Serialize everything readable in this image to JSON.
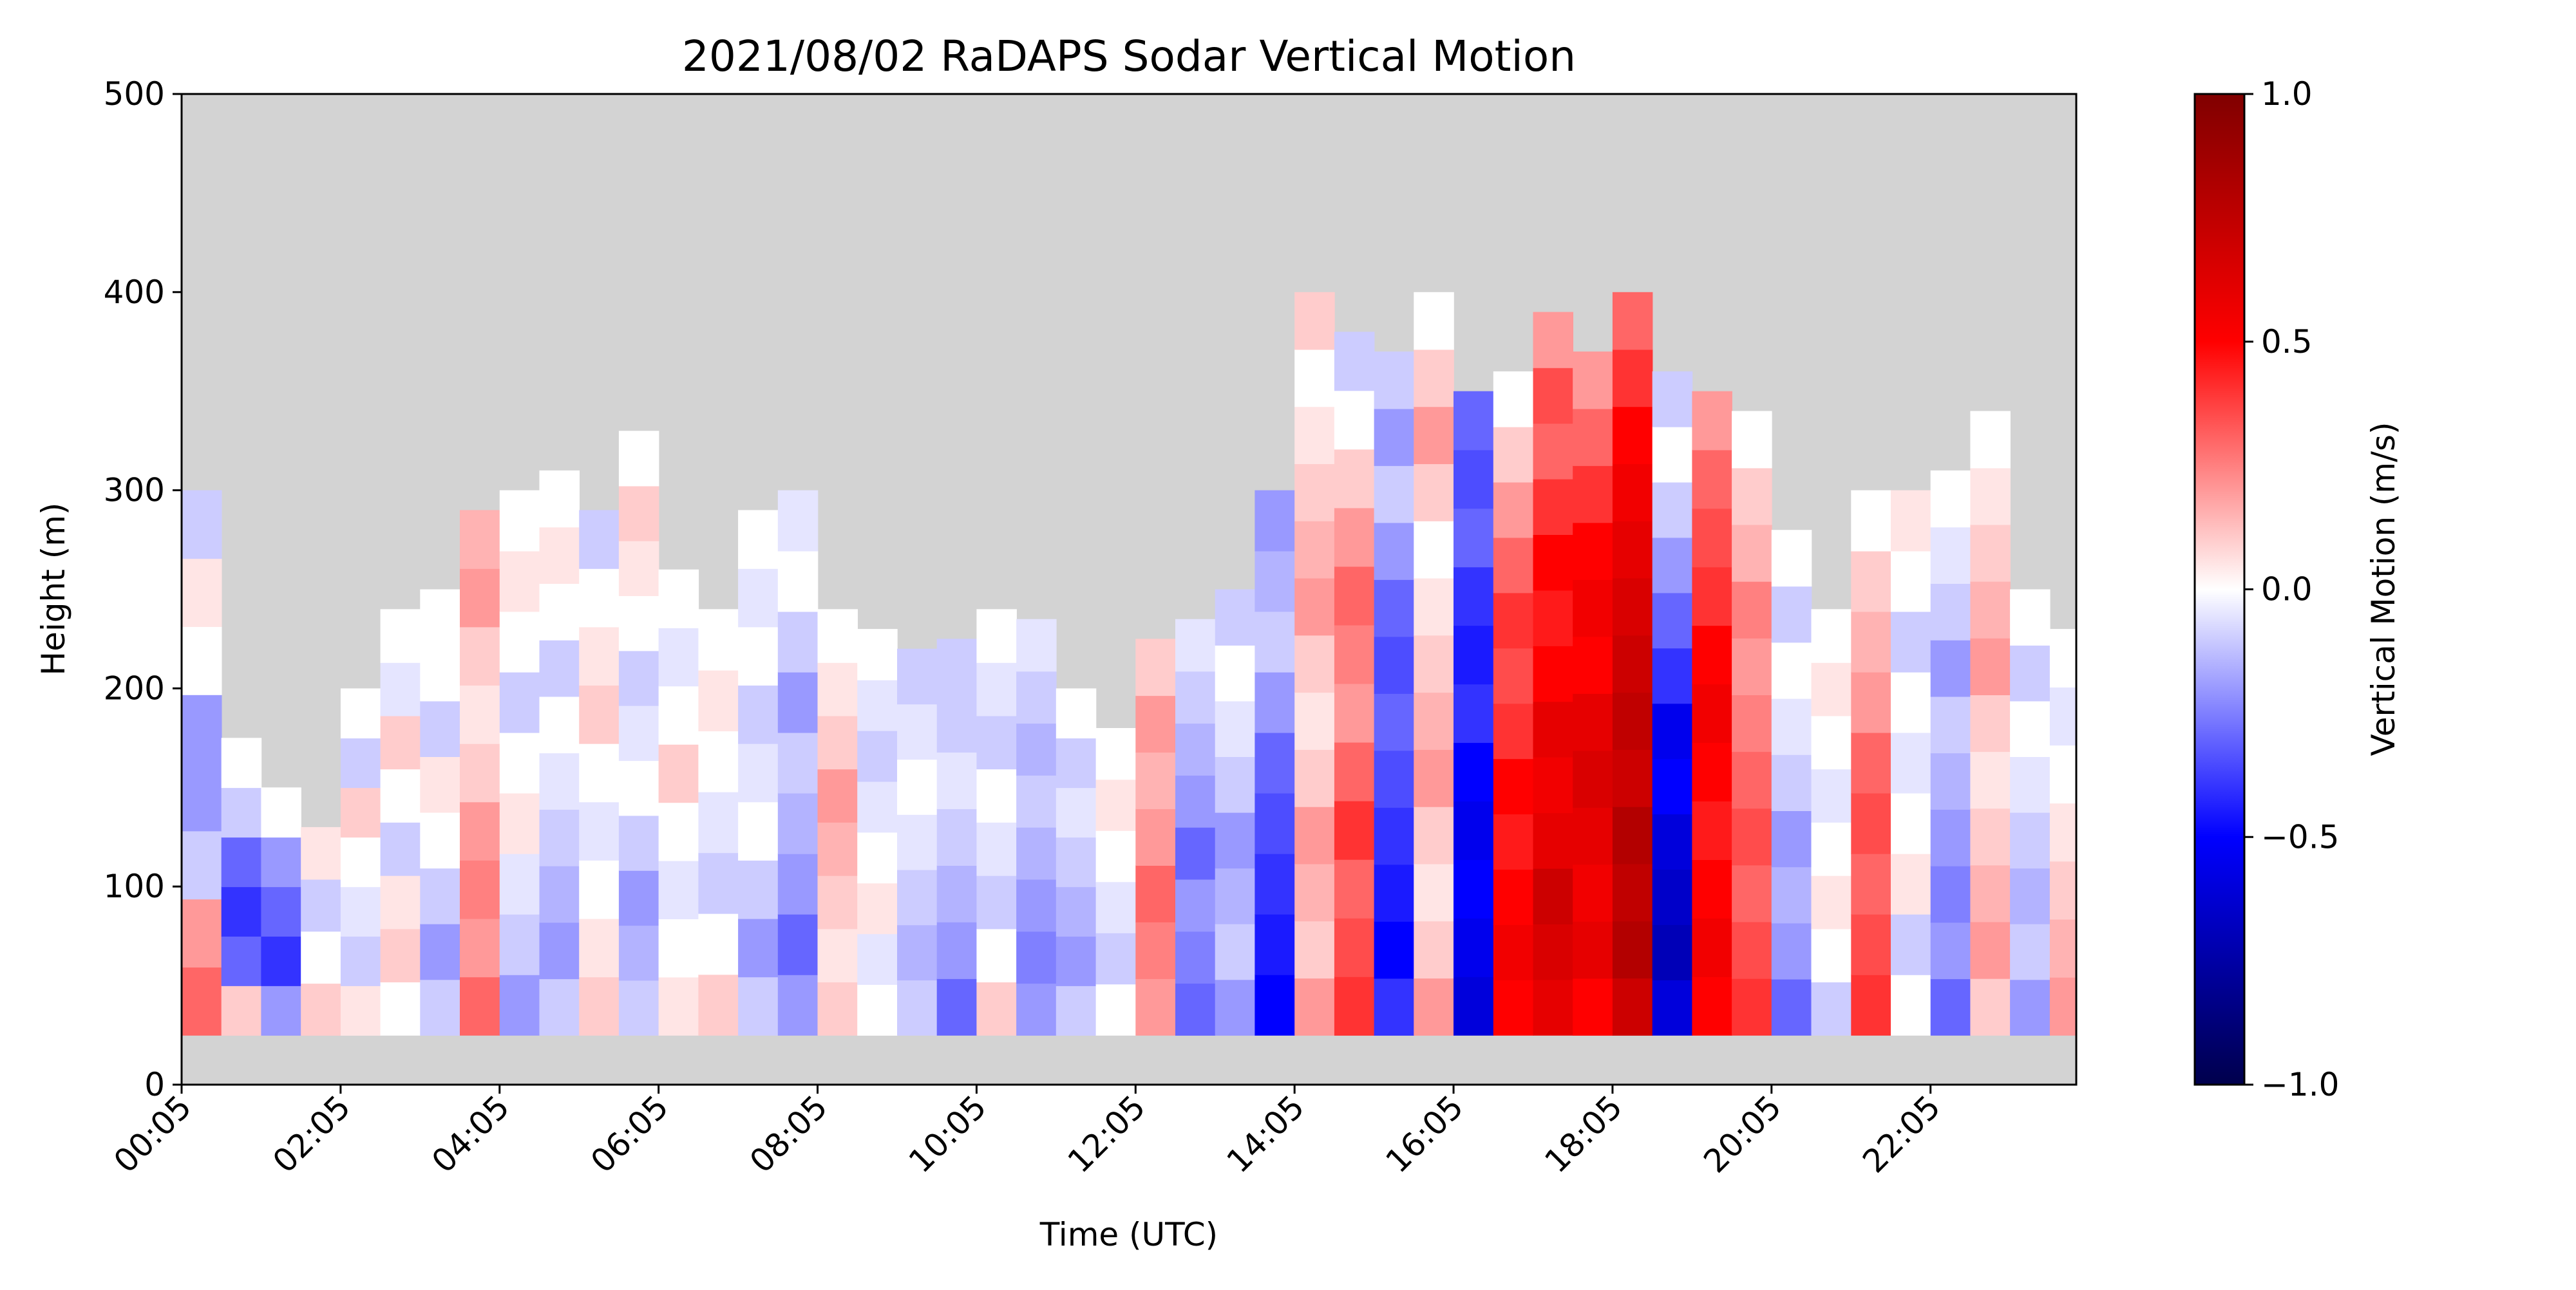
{
  "chart_data": {
    "type": "heatmap",
    "title": "2021/08/02 RaDAPS Sodar Vertical Motion",
    "xlabel": "Time (UTC)",
    "ylabel": "Height (m)",
    "colorbar_label": "Vertical Motion (m/s)",
    "x_ticks": [
      "00:05",
      "02:05",
      "04:05",
      "06:05",
      "08:05",
      "10:05",
      "12:05",
      "14:05",
      "16:05",
      "18:05",
      "20:05",
      "22:05"
    ],
    "x_range": [
      "00:05",
      "23:55"
    ],
    "ylim": [
      0,
      500
    ],
    "y_ticks": [
      0,
      100,
      200,
      300,
      400,
      500
    ],
    "clim": [
      -1.0,
      1.0
    ],
    "colorbar_ticks": [
      1.0,
      0.5,
      0.0,
      -0.5,
      -1.0
    ],
    "colorbar_tick_labels": [
      "1.0",
      "0.5",
      "0.0",
      "−0.5",
      "−1.0"
    ],
    "colormap": "seismic",
    "colormap_stops": [
      "#00004c",
      "#0000ff",
      "#ffffff",
      "#ff0000",
      "#800000"
    ],
    "missing_color": "#d3d3d3",
    "data_bottom_height": 25,
    "grid": false,
    "columns": [
      {
        "time": "00:05",
        "top": 300,
        "v": [
          0.3,
          0.2,
          -0.1,
          -0.2,
          -0.2,
          0.0,
          0.05,
          -0.1
        ]
      },
      {
        "time": "00:35",
        "top": 175,
        "v": [
          0.1,
          -0.3,
          -0.4,
          -0.3,
          -0.1,
          0.0
        ]
      },
      {
        "time": "01:05",
        "top": 150,
        "v": [
          -0.2,
          -0.4,
          -0.3,
          -0.2,
          0.0
        ]
      },
      {
        "time": "01:35",
        "top": 130,
        "v": [
          0.1,
          0.0,
          -0.1,
          0.05
        ]
      },
      {
        "time": "02:05",
        "top": 200,
        "v": [
          0.05,
          -0.1,
          -0.05,
          0.0,
          0.1,
          -0.1,
          0.0
        ]
      },
      {
        "time": "02:35",
        "top": 240,
        "v": [
          0.0,
          0.1,
          0.05,
          -0.1,
          0.0,
          0.1,
          -0.05,
          0.0
        ]
      },
      {
        "time": "03:05",
        "top": 250,
        "v": [
          -0.1,
          -0.2,
          -0.1,
          0.0,
          0.05,
          -0.1,
          0.0,
          0.0
        ]
      },
      {
        "time": "03:35",
        "top": 290,
        "v": [
          0.3,
          0.2,
          0.25,
          0.2,
          0.1,
          0.05,
          0.1,
          0.2,
          0.15
        ]
      },
      {
        "time": "04:05",
        "top": 300,
        "v": [
          -0.2,
          -0.1,
          -0.05,
          0.05,
          0.0,
          -0.1,
          0.0,
          0.05,
          0.0
        ]
      },
      {
        "time": "04:35",
        "top": 310,
        "v": [
          -0.1,
          -0.2,
          -0.15,
          -0.1,
          -0.05,
          0.0,
          -0.1,
          0.0,
          0.05,
          0.0
        ]
      },
      {
        "time": "05:05",
        "top": 290,
        "v": [
          0.1,
          0.05,
          0.0,
          -0.05,
          0.0,
          0.1,
          0.05,
          0.0,
          -0.1
        ]
      },
      {
        "time": "05:35",
        "top": 330,
        "v": [
          -0.1,
          -0.15,
          -0.2,
          -0.1,
          0.0,
          -0.05,
          -0.1,
          0.0,
          0.05,
          0.1,
          0.0
        ]
      },
      {
        "time": "06:05",
        "top": 260,
        "v": [
          0.05,
          0.0,
          -0.05,
          0.0,
          0.1,
          0.0,
          -0.05,
          0.0
        ]
      },
      {
        "time": "06:35",
        "top": 240,
        "v": [
          0.1,
          0.0,
          -0.1,
          -0.05,
          0.0,
          0.05,
          0.0
        ]
      },
      {
        "time": "07:05",
        "top": 290,
        "v": [
          -0.1,
          -0.2,
          -0.1,
          0.0,
          -0.05,
          -0.1,
          0.0,
          -0.05,
          0.0
        ]
      },
      {
        "time": "07:35",
        "top": 300,
        "v": [
          -0.2,
          -0.3,
          -0.2,
          -0.15,
          -0.1,
          -0.2,
          -0.1,
          0.0,
          -0.05
        ]
      },
      {
        "time": "08:05",
        "top": 240,
        "v": [
          0.1,
          0.05,
          0.1,
          0.15,
          0.2,
          0.1,
          0.05,
          0.0
        ]
      },
      {
        "time": "08:35",
        "top": 230,
        "v": [
          0.0,
          -0.05,
          0.05,
          0.0,
          -0.05,
          -0.1,
          -0.05,
          0.0
        ]
      },
      {
        "time": "09:05",
        "top": 220,
        "v": [
          -0.1,
          -0.15,
          -0.1,
          -0.05,
          0.0,
          -0.05,
          -0.1
        ]
      },
      {
        "time": "09:35",
        "top": 225,
        "v": [
          -0.3,
          -0.2,
          -0.15,
          -0.1,
          -0.05,
          -0.1,
          -0.1
        ]
      },
      {
        "time": "10:05",
        "top": 240,
        "v": [
          0.1,
          0.0,
          -0.1,
          -0.05,
          0.0,
          -0.1,
          -0.05,
          0.0
        ]
      },
      {
        "time": "10:35",
        "top": 235,
        "v": [
          -0.2,
          -0.25,
          -0.2,
          -0.15,
          -0.1,
          -0.15,
          -0.1,
          -0.05
        ]
      },
      {
        "time": "11:05",
        "top": 200,
        "v": [
          -0.1,
          -0.2,
          -0.15,
          -0.1,
          -0.05,
          -0.1,
          0.0
        ]
      },
      {
        "time": "11:35",
        "top": 180,
        "v": [
          0.0,
          -0.1,
          -0.05,
          0.0,
          0.05,
          0.0
        ]
      },
      {
        "time": "12:05",
        "top": 225,
        "v": [
          0.2,
          0.25,
          0.3,
          0.2,
          0.15,
          0.2,
          0.1
        ]
      },
      {
        "time": "12:35",
        "top": 235,
        "v": [
          -0.3,
          -0.25,
          -0.2,
          -0.3,
          -0.2,
          -0.15,
          -0.1,
          -0.05
        ]
      },
      {
        "time": "13:05",
        "top": 250,
        "v": [
          -0.2,
          -0.1,
          -0.15,
          -0.2,
          -0.1,
          -0.05,
          0.0,
          -0.1
        ]
      },
      {
        "time": "13:35",
        "top": 300,
        "v": [
          -0.5,
          -0.45,
          -0.4,
          -0.35,
          -0.3,
          -0.2,
          -0.1,
          -0.15,
          -0.2
        ]
      },
      {
        "time": "14:05",
        "top": 400,
        "v": [
          0.2,
          0.1,
          0.15,
          0.2,
          0.1,
          0.05,
          0.1,
          0.2,
          0.15,
          0.1,
          0.05,
          0.0,
          0.1
        ]
      },
      {
        "time": "14:35",
        "top": 380,
        "v": [
          0.4,
          0.35,
          0.3,
          0.4,
          0.3,
          0.2,
          0.25,
          0.3,
          0.2,
          0.1,
          0.0,
          -0.1
        ]
      },
      {
        "time": "15:05",
        "top": 370,
        "v": [
          -0.4,
          -0.5,
          -0.45,
          -0.4,
          -0.35,
          -0.3,
          -0.35,
          -0.3,
          -0.2,
          -0.1,
          -0.2,
          -0.1
        ]
      },
      {
        "time": "15:35",
        "top": 400,
        "v": [
          0.2,
          0.1,
          0.05,
          0.1,
          0.2,
          0.15,
          0.1,
          0.05,
          0.0,
          0.1,
          0.2,
          0.1,
          0.0
        ]
      },
      {
        "time": "16:05",
        "top": 350,
        "v": [
          -0.6,
          -0.55,
          -0.5,
          -0.55,
          -0.5,
          -0.4,
          -0.45,
          -0.4,
          -0.3,
          -0.35,
          -0.3
        ]
      },
      {
        "time": "16:35",
        "top": 360,
        "v": [
          0.5,
          0.55,
          0.5,
          0.45,
          0.5,
          0.4,
          0.35,
          0.4,
          0.3,
          0.2,
          0.1,
          0.0
        ]
      },
      {
        "time": "17:05",
        "top": 390,
        "v": [
          0.6,
          0.65,
          0.7,
          0.6,
          0.55,
          0.6,
          0.5,
          0.45,
          0.5,
          0.4,
          0.3,
          0.35,
          0.2
        ]
      },
      {
        "time": "17:35",
        "top": 370,
        "v": [
          0.5,
          0.6,
          0.55,
          0.6,
          0.65,
          0.6,
          0.5,
          0.55,
          0.5,
          0.4,
          0.3,
          0.2
        ]
      },
      {
        "time": "18:05",
        "top": 400,
        "v": [
          0.7,
          0.8,
          0.75,
          0.8,
          0.7,
          0.75,
          0.7,
          0.65,
          0.6,
          0.55,
          0.5,
          0.4,
          0.3
        ]
      },
      {
        "time": "18:35",
        "top": 360,
        "v": [
          -0.6,
          -0.7,
          -0.65,
          -0.6,
          -0.5,
          -0.55,
          -0.4,
          -0.3,
          -0.2,
          -0.1,
          0.0,
          -0.1
        ]
      },
      {
        "time": "19:05",
        "top": 350,
        "v": [
          0.5,
          0.55,
          0.5,
          0.45,
          0.5,
          0.55,
          0.5,
          0.4,
          0.35,
          0.3,
          0.2
        ]
      },
      {
        "time": "19:35",
        "top": 340,
        "v": [
          0.4,
          0.35,
          0.3,
          0.35,
          0.3,
          0.25,
          0.2,
          0.25,
          0.15,
          0.1,
          0.0
        ]
      },
      {
        "time": "20:05",
        "top": 280,
        "v": [
          -0.3,
          -0.2,
          -0.15,
          -0.2,
          -0.1,
          -0.05,
          0.0,
          -0.1,
          0.0
        ]
      },
      {
        "time": "20:35",
        "top": 240,
        "v": [
          -0.1,
          0.0,
          0.05,
          0.0,
          -0.05,
          0.0,
          0.05,
          0.0
        ]
      },
      {
        "time": "21:05",
        "top": 300,
        "v": [
          0.4,
          0.35,
          0.3,
          0.35,
          0.3,
          0.2,
          0.15,
          0.1,
          0.0
        ]
      },
      {
        "time": "21:35",
        "top": 300,
        "v": [
          0.0,
          -0.1,
          0.05,
          0.0,
          -0.05,
          0.0,
          -0.1,
          0.0,
          0.05
        ]
      },
      {
        "time": "22:05",
        "top": 310,
        "v": [
          -0.3,
          -0.2,
          -0.25,
          -0.2,
          -0.15,
          -0.1,
          -0.2,
          -0.1,
          -0.05,
          0.0
        ]
      },
      {
        "time": "22:35",
        "top": 340,
        "v": [
          0.1,
          0.2,
          0.15,
          0.1,
          0.05,
          0.1,
          0.2,
          0.15,
          0.1,
          0.05,
          0.0
        ]
      },
      {
        "time": "23:05",
        "top": 250,
        "v": [
          -0.2,
          -0.1,
          -0.15,
          -0.1,
          -0.05,
          0.0,
          -0.1,
          0.0
        ]
      },
      {
        "time": "23:35",
        "top": 230,
        "v": [
          0.2,
          0.15,
          0.1,
          0.05,
          0.0,
          -0.05,
          0.0
        ]
      }
    ]
  }
}
